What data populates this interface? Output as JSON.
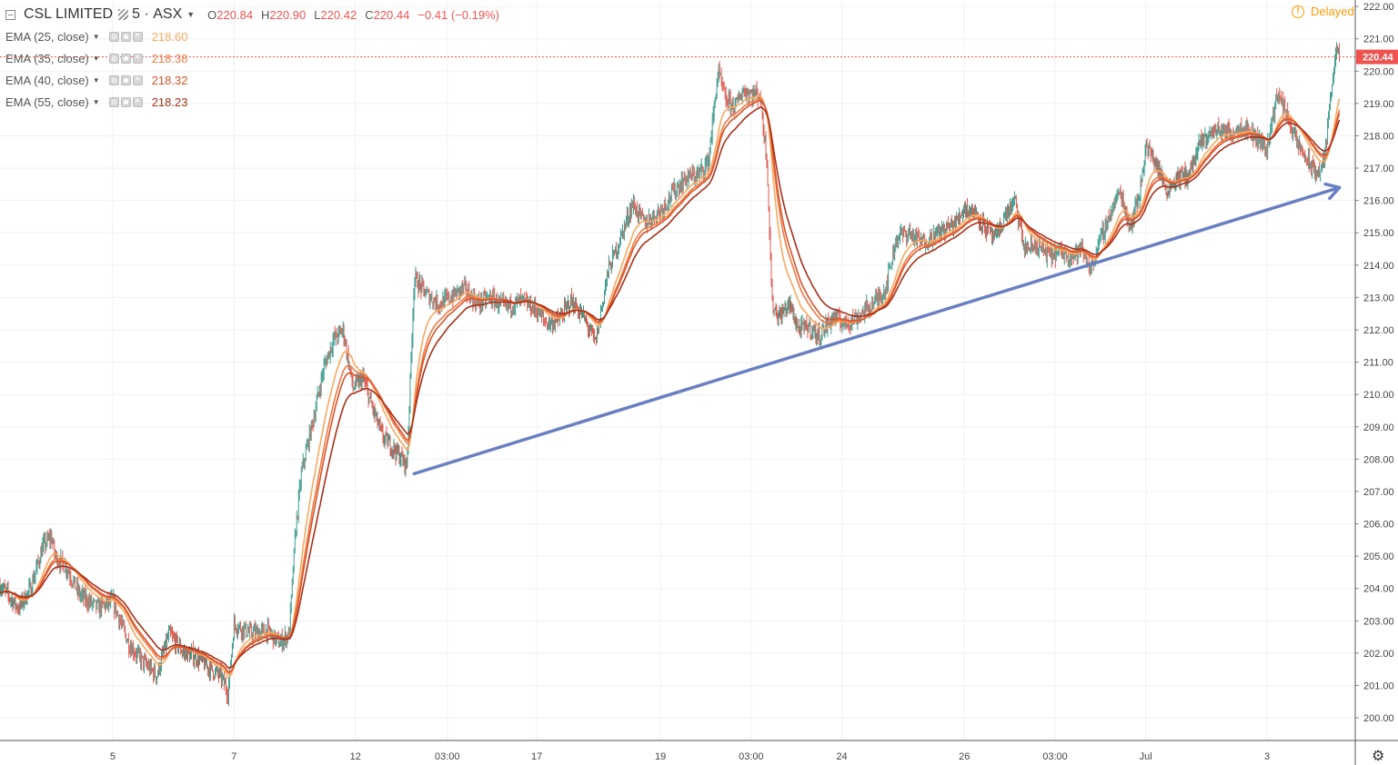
{
  "header": {
    "symbol": "CSL LIMITED",
    "interval": "5",
    "exchange": "ASX",
    "ohlc": [
      {
        "key": "O",
        "value": "220.84"
      },
      {
        "key": "H",
        "value": "220.90"
      },
      {
        "key": "L",
        "value": "220.42"
      },
      {
        "key": "C",
        "value": "220.44"
      }
    ],
    "change": "−0.41 (−0.19%)",
    "status": "Delayed"
  },
  "indicators": [
    {
      "label": "EMA (25, close)",
      "value": "218.60",
      "color": "#f8a85e"
    },
    {
      "label": "EMA (35, close)",
      "value": "218.38",
      "color": "#f07a43"
    },
    {
      "label": "EMA (40, close)",
      "value": "218.32",
      "color": "#d9542b"
    },
    {
      "label": "EMA (55, close)",
      "value": "218.23",
      "color": "#a8301a"
    }
  ],
  "colors": {
    "up": "#3a9b8d",
    "down": "#e0594f",
    "trendline": "#6a7fc1",
    "last_price": "#ef5350",
    "grid": "#eef0f3",
    "axis_text": "#444444"
  },
  "chart_data": {
    "type": "candlestick",
    "last_price": 220.44,
    "last_price_label": "220.44",
    "y_range": [
      199.3,
      222.2
    ],
    "y_ticks": [
      {
        "value": 200,
        "label": "200.00"
      },
      {
        "value": 201,
        "label": "201.00"
      },
      {
        "value": 202,
        "label": "202.00"
      },
      {
        "value": 203,
        "label": "203.00"
      },
      {
        "value": 204,
        "label": "204.00"
      },
      {
        "value": 205,
        "label": "205.00"
      },
      {
        "value": 206,
        "label": "206.00"
      },
      {
        "value": 207,
        "label": "207.00"
      },
      {
        "value": 208,
        "label": "208.00"
      },
      {
        "value": 209,
        "label": "209.00"
      },
      {
        "value": 210,
        "label": "210.00"
      },
      {
        "value": 211,
        "label": "211.00"
      },
      {
        "value": 212,
        "label": "212.00"
      },
      {
        "value": 213,
        "label": "213.00"
      },
      {
        "value": 214,
        "label": "214.00"
      },
      {
        "value": 215,
        "label": "215.00"
      },
      {
        "value": 216,
        "label": "216.00"
      },
      {
        "value": 217,
        "label": "217.00"
      },
      {
        "value": 218,
        "label": "218.00"
      },
      {
        "value": 219,
        "label": "219.00"
      },
      {
        "value": 220,
        "label": "220.00"
      },
      {
        "value": 221,
        "label": "221.00"
      },
      {
        "value": 222,
        "label": "222.00"
      }
    ],
    "x_range": [
      0,
      1100
    ],
    "x_ticks": [
      {
        "x": 92,
        "label": "5"
      },
      {
        "x": 191,
        "label": "7"
      },
      {
        "x": 290,
        "label": "12"
      },
      {
        "x": 365,
        "label": "03:00"
      },
      {
        "x": 438,
        "label": "17"
      },
      {
        "x": 539,
        "label": "19"
      },
      {
        "x": 613,
        "label": "03:00"
      },
      {
        "x": 687,
        "label": "24"
      },
      {
        "x": 787,
        "label": "26"
      },
      {
        "x": 861,
        "label": "03:00"
      },
      {
        "x": 935,
        "label": "Jul"
      },
      {
        "x": 1034,
        "label": "3"
      }
    ],
    "price_path": [
      [
        0,
        204.1
      ],
      [
        15,
        203.4
      ],
      [
        25,
        204.0
      ],
      [
        35,
        205.3
      ],
      [
        42,
        205.6
      ],
      [
        45,
        205.0
      ],
      [
        55,
        204.6
      ],
      [
        65,
        203.8
      ],
      [
        80,
        203.4
      ],
      [
        92,
        203.6
      ],
      [
        105,
        202.3
      ],
      [
        115,
        201.8
      ],
      [
        128,
        201.3
      ],
      [
        138,
        202.6
      ],
      [
        150,
        202.0
      ],
      [
        160,
        201.9
      ],
      [
        172,
        201.5
      ],
      [
        180,
        201.3
      ],
      [
        186,
        200.8
      ],
      [
        191,
        202.9
      ],
      [
        205,
        202.6
      ],
      [
        218,
        202.7
      ],
      [
        228,
        202.3
      ],
      [
        236,
        202.6
      ],
      [
        241,
        205.7
      ],
      [
        246,
        207.6
      ],
      [
        256,
        209.3
      ],
      [
        264,
        210.8
      ],
      [
        272,
        211.7
      ],
      [
        280,
        212.0
      ],
      [
        288,
        210.2
      ],
      [
        296,
        210.5
      ],
      [
        302,
        209.8
      ],
      [
        312,
        208.7
      ],
      [
        322,
        208.3
      ],
      [
        332,
        207.8
      ],
      [
        338,
        213.6
      ],
      [
        348,
        213.1
      ],
      [
        358,
        212.8
      ],
      [
        368,
        213.0
      ],
      [
        378,
        213.3
      ],
      [
        390,
        212.8
      ],
      [
        400,
        213.0
      ],
      [
        412,
        212.7
      ],
      [
        426,
        212.9
      ],
      [
        438,
        212.6
      ],
      [
        446,
        212.2
      ],
      [
        456,
        212.3
      ],
      [
        466,
        212.9
      ],
      [
        476,
        212.4
      ],
      [
        486,
        211.6
      ],
      [
        496,
        213.8
      ],
      [
        506,
        214.8
      ],
      [
        516,
        215.9
      ],
      [
        526,
        215.3
      ],
      [
        539,
        215.7
      ],
      [
        550,
        216.3
      ],
      [
        560,
        216.7
      ],
      [
        570,
        216.8
      ],
      [
        578,
        217.2
      ],
      [
        586,
        220.0
      ],
      [
        592,
        219.1
      ],
      [
        600,
        218.9
      ],
      [
        606,
        219.4
      ],
      [
        613,
        219.3
      ],
      [
        620,
        219.3
      ],
      [
        626,
        217.2
      ],
      [
        630,
        212.8
      ],
      [
        636,
        212.4
      ],
      [
        644,
        212.8
      ],
      [
        652,
        212.0
      ],
      [
        660,
        212.1
      ],
      [
        668,
        211.8
      ],
      [
        674,
        212.1
      ],
      [
        680,
        212.4
      ],
      [
        690,
        212.2
      ],
      [
        700,
        212.4
      ],
      [
        712,
        212.8
      ],
      [
        722,
        213.2
      ],
      [
        732,
        214.9
      ],
      [
        742,
        215.0
      ],
      [
        752,
        214.7
      ],
      [
        762,
        214.9
      ],
      [
        770,
        215.1
      ],
      [
        780,
        215.3
      ],
      [
        787,
        215.8
      ],
      [
        797,
        215.6
      ],
      [
        805,
        215.1
      ],
      [
        812,
        214.8
      ],
      [
        820,
        215.5
      ],
      [
        828,
        216.0
      ],
      [
        836,
        214.5
      ],
      [
        846,
        214.6
      ],
      [
        856,
        214.3
      ],
      [
        866,
        214.4
      ],
      [
        876,
        214.3
      ],
      [
        882,
        214.5
      ],
      [
        890,
        213.9
      ],
      [
        898,
        214.8
      ],
      [
        906,
        215.6
      ],
      [
        914,
        216.3
      ],
      [
        922,
        215.2
      ],
      [
        930,
        216.2
      ],
      [
        935,
        217.7
      ],
      [
        944,
        217.1
      ],
      [
        952,
        216.3
      ],
      [
        960,
        216.7
      ],
      [
        970,
        216.8
      ],
      [
        980,
        217.8
      ],
      [
        992,
        218.2
      ],
      [
        1004,
        218.1
      ],
      [
        1014,
        218.3
      ],
      [
        1024,
        218.0
      ],
      [
        1034,
        217.6
      ],
      [
        1042,
        219.3
      ],
      [
        1050,
        218.7
      ],
      [
        1058,
        217.8
      ],
      [
        1066,
        217.3
      ],
      [
        1072,
        216.9
      ],
      [
        1078,
        216.9
      ],
      [
        1082,
        217.6
      ],
      [
        1086,
        219.4
      ],
      [
        1090,
        220.6
      ],
      [
        1093,
        220.44
      ]
    ],
    "trendline": {
      "x1": 338,
      "y1": 207.55,
      "x2": 1093,
      "y2": 216.4,
      "arrow": true
    }
  },
  "icons": {
    "status": "warning-clock-icon",
    "settings": "gear-icon"
  }
}
